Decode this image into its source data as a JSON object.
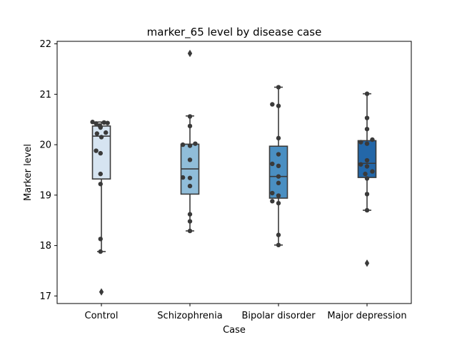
{
  "chart_data": {
    "type": "box",
    "title": "marker_65 level by disease case",
    "xlabel": "Case",
    "ylabel": "Marker level",
    "ylim": [
      16.85,
      22.05
    ],
    "yticks": [
      17,
      18,
      19,
      20,
      21,
      22
    ],
    "ytick_labels": [
      "17",
      "18",
      "19",
      "20",
      "21",
      "22"
    ],
    "grid": false,
    "legend": false,
    "categories": [
      "Control",
      "Schizophrenia",
      "Bipolar disorder",
      "Major depression"
    ],
    "colors": [
      "#d6e4f1",
      "#90bdd9",
      "#4a8fc2",
      "#2367a8"
    ],
    "point_color": "#3a3a3a",
    "line_color": "#3a3a3a",
    "boxes": [
      {
        "name": "Control",
        "q1": 19.32,
        "median": 20.17,
        "q3": 20.37,
        "whisker_low": 17.88,
        "whisker_high": 20.45,
        "outliers": [
          17.08
        ]
      },
      {
        "name": "Schizophrenia",
        "q1": 19.02,
        "median": 19.52,
        "q3": 20.01,
        "whisker_low": 18.29,
        "whisker_high": 20.57,
        "outliers": [
          21.81
        ]
      },
      {
        "name": "Bipolar disorder",
        "q1": 18.94,
        "median": 19.37,
        "q3": 19.97,
        "whisker_low": 18.01,
        "whisker_high": 21.14,
        "outliers": []
      },
      {
        "name": "Major depression",
        "q1": 19.35,
        "median": 19.63,
        "q3": 20.08,
        "whisker_low": 18.7,
        "whisker_high": 21.01,
        "outliers": [
          17.65
        ]
      }
    ],
    "points": [
      [
        {
          "y": 20.45,
          "dx": -0.1
        },
        {
          "y": 20.42,
          "dx": -0.06
        },
        {
          "y": 20.38,
          "dx": -0.02
        },
        {
          "y": 20.44,
          "dx": 0.03
        },
        {
          "y": 20.43,
          "dx": 0.07
        },
        {
          "y": 20.34,
          "dx": -0.01
        },
        {
          "y": 20.24,
          "dx": 0.05
        },
        {
          "y": 20.22,
          "dx": -0.05
        },
        {
          "y": 20.15,
          "dx": 0.0
        },
        {
          "y": 19.88,
          "dx": -0.06
        },
        {
          "y": 19.83,
          "dx": -0.01
        },
        {
          "y": 19.42,
          "dx": -0.01
        },
        {
          "y": 19.22,
          "dx": -0.01
        },
        {
          "y": 18.13,
          "dx": -0.01
        },
        {
          "y": 17.88,
          "dx": -0.01
        }
      ],
      [
        {
          "y": 20.56,
          "dx": 0.0
        },
        {
          "y": 20.37,
          "dx": 0.0
        },
        {
          "y": 20.02,
          "dx": 0.06
        },
        {
          "y": 20.0,
          "dx": -0.08
        },
        {
          "y": 19.98,
          "dx": 0.0
        },
        {
          "y": 19.7,
          "dx": 0.0
        },
        {
          "y": 19.35,
          "dx": -0.08
        },
        {
          "y": 19.34,
          "dx": 0.0
        },
        {
          "y": 19.18,
          "dx": 0.0
        },
        {
          "y": 18.62,
          "dx": 0.0
        },
        {
          "y": 18.48,
          "dx": 0.0
        },
        {
          "y": 18.29,
          "dx": 0.0
        }
      ],
      [
        {
          "y": 21.14,
          "dx": 0.0
        },
        {
          "y": 20.8,
          "dx": -0.07
        },
        {
          "y": 20.77,
          "dx": 0.0
        },
        {
          "y": 20.13,
          "dx": 0.0
        },
        {
          "y": 19.81,
          "dx": 0.0
        },
        {
          "y": 19.62,
          "dx": -0.07
        },
        {
          "y": 19.58,
          "dx": 0.0
        },
        {
          "y": 19.37,
          "dx": 0.0
        },
        {
          "y": 19.24,
          "dx": 0.0
        },
        {
          "y": 19.04,
          "dx": -0.07
        },
        {
          "y": 18.99,
          "dx": 0.0
        },
        {
          "y": 18.88,
          "dx": -0.07
        },
        {
          "y": 18.84,
          "dx": 0.0
        },
        {
          "y": 18.21,
          "dx": 0.0
        },
        {
          "y": 18.01,
          "dx": 0.0
        }
      ],
      [
        {
          "y": 21.01,
          "dx": 0.0
        },
        {
          "y": 20.53,
          "dx": 0.0
        },
        {
          "y": 20.31,
          "dx": 0.0
        },
        {
          "y": 20.1,
          "dx": 0.06
        },
        {
          "y": 20.05,
          "dx": -0.07
        },
        {
          "y": 20.02,
          "dx": 0.0
        },
        {
          "y": 19.69,
          "dx": 0.0
        },
        {
          "y": 19.61,
          "dx": -0.07
        },
        {
          "y": 19.57,
          "dx": 0.0
        },
        {
          "y": 19.47,
          "dx": 0.06
        },
        {
          "y": 19.42,
          "dx": -0.02
        },
        {
          "y": 19.33,
          "dx": 0.0
        },
        {
          "y": 19.02,
          "dx": 0.0
        },
        {
          "y": 18.7,
          "dx": 0.0
        }
      ]
    ]
  }
}
